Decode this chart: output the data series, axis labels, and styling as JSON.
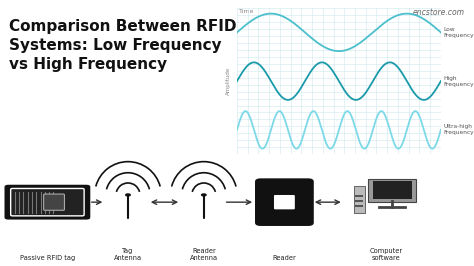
{
  "bg_color": "#ffffff",
  "title_lines": [
    "Comparison Between RFID",
    "Systems: Low Frequency",
    "vs High Frequency"
  ],
  "title_fontsize": 11.0,
  "title_fontweight": "bold",
  "wave_color_low": "#4bbfcc",
  "wave_color_high": "#1a9aaa",
  "wave_color_uhf": "#7dd8e8",
  "grid_color": "#cde8ee",
  "wave_bg": "#edf6f9",
  "wave_labels": [
    "Low\nFrequency",
    "High\nFrequency",
    "Ultra-high\nFrequency"
  ],
  "wave_freqs": [
    1.5,
    3.0,
    6.0
  ],
  "encstore_text": "encstore.com",
  "bottom_labels": [
    "Passive RFID tag",
    "Tag\nAntenna",
    "Reader\nAntenna",
    "Reader",
    "Computer\nsoftware"
  ],
  "arrow_color": "#333333",
  "icon_color": "#111111"
}
